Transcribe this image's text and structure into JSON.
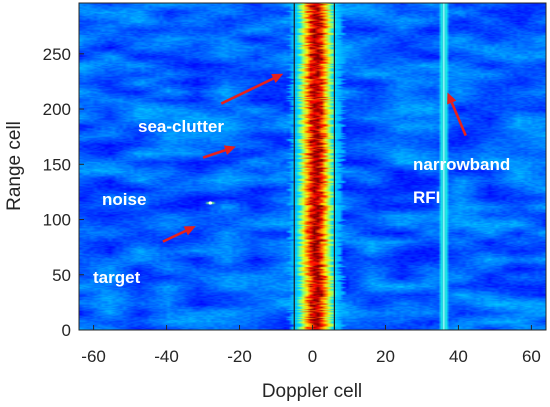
{
  "chart_data": {
    "type": "heatmap",
    "title": "",
    "xlabel": "Doppler cell",
    "ylabel": "Range cell",
    "xlim": [
      -64,
      64
    ],
    "ylim": [
      0,
      296
    ],
    "xticks": [
      "-60",
      "-40",
      "-20",
      "0",
      "20",
      "40",
      "60"
    ],
    "xtick_values": [
      -60,
      -40,
      -20,
      0,
      20,
      40,
      60
    ],
    "yticks": [
      "0",
      "50",
      "100",
      "150",
      "200",
      "250"
    ],
    "ytick_values": [
      0,
      50,
      100,
      150,
      200,
      250
    ],
    "colormap": "jet",
    "background_level": 0.22,
    "features": {
      "sea_clutter_band": {
        "doppler_range": [
          -5,
          6
        ],
        "center": 1,
        "peak_level": 0.85
      },
      "narrowband_rfi_line": {
        "doppler": 36,
        "level": 0.4
      },
      "target": {
        "doppler": -28,
        "range": 115
      }
    },
    "annotations": [
      {
        "text": "sea-clutter",
        "arrow_from": [
          -25,
          205
        ],
        "arrow_to": [
          -8,
          232
        ]
      },
      {
        "text": "noise",
        "arrow_from": [
          -30,
          156
        ],
        "arrow_to": [
          -21,
          166
        ]
      },
      {
        "text": "target",
        "arrow_from": [
          -41,
          80
        ],
        "arrow_to": [
          -32,
          94
        ]
      },
      {
        "text": "narrowband\nRFI",
        "arrow_from": [
          42,
          176
        ],
        "arrow_to": [
          37,
          215
        ]
      }
    ],
    "annotation_lines": [
      {
        "id": "sea-clutter",
        "text": "sea-clutter"
      },
      {
        "id": "noise",
        "text": "noise"
      },
      {
        "id": "target",
        "text": "target"
      },
      {
        "id": "rfi-1",
        "text": "narrowband"
      },
      {
        "id": "rfi-2",
        "text": "RFI"
      }
    ],
    "colors": {
      "arrow": "#e5201e",
      "annotation_text": "#ffffff",
      "axes": "#262626"
    }
  }
}
